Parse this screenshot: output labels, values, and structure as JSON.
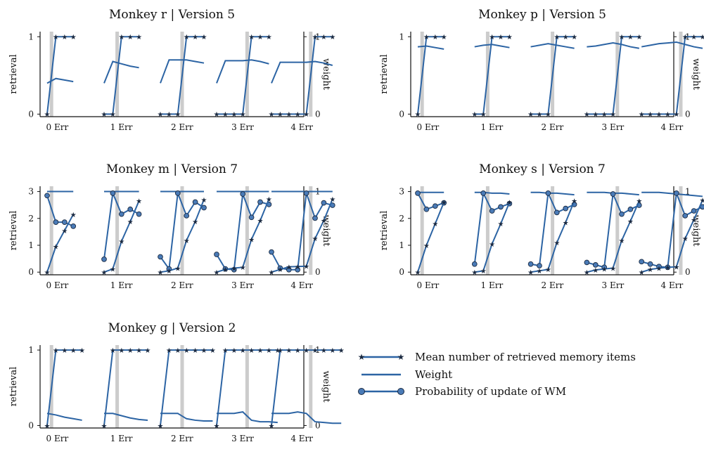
{
  "figure": {
    "legend": {
      "items": [
        {
          "label": "Mean number of retrieved memory items",
          "marker": "star"
        },
        {
          "label": "Weight",
          "marker": "none"
        },
        {
          "label": "Probability of update of WM",
          "marker": "circle"
        }
      ]
    },
    "colors": {
      "line": "#2c64a4",
      "band": "#cccccc",
      "marker": "#1b2a41"
    }
  },
  "chart_data": [
    {
      "type": "line",
      "title": "Monkey r | Version 5",
      "ylabel": "retrieval",
      "y2label": "weight",
      "ylim": [
        0,
        1
      ],
      "yticks": [
        "0",
        "1"
      ],
      "y2ticks": [
        "0",
        "1"
      ],
      "groups": [
        "0 Err",
        "1 Err",
        "2 Err",
        "3 Err",
        "4 Err"
      ],
      "retrieval": [
        [
          0,
          1,
          1,
          1
        ],
        [
          0,
          0,
          1,
          1,
          1
        ],
        [
          0,
          0,
          0,
          1,
          1,
          1
        ],
        [
          0,
          0,
          0,
          0,
          1,
          1,
          1
        ],
        [
          0,
          0,
          0,
          0,
          0,
          1,
          1,
          1
        ]
      ],
      "weight": [
        [
          0.4,
          0.46,
          0.44,
          0.42
        ],
        [
          0.4,
          0.68,
          0.65,
          0.62,
          0.6
        ],
        [
          0.4,
          0.7,
          0.7,
          0.7,
          0.68,
          0.66
        ],
        [
          0.4,
          0.69,
          0.69,
          0.69,
          0.7,
          0.68,
          0.65
        ],
        [
          0.4,
          0.67,
          0.67,
          0.67,
          0.67,
          0.68,
          0.66,
          0.63
        ]
      ]
    },
    {
      "type": "line",
      "title": "Monkey p | Version 5",
      "ylabel": "retrieval",
      "y2label": "weight",
      "ylim": [
        0,
        1
      ],
      "yticks": [
        "0",
        "1"
      ],
      "y2ticks": [
        "0",
        "1"
      ],
      "groups": [
        "0 Err",
        "1 Err",
        "2 Err",
        "3 Err",
        "4 Err"
      ],
      "retrieval": [
        [
          0,
          1,
          1,
          1
        ],
        [
          0,
          0,
          1,
          1,
          1
        ],
        [
          0,
          0,
          0,
          1,
          1,
          1
        ],
        [
          0,
          0,
          0,
          0,
          1,
          1,
          1
        ],
        [
          0,
          0,
          0,
          0,
          0,
          1,
          1,
          1
        ]
      ],
      "weight": [
        [
          0.87,
          0.88,
          0.86,
          0.84
        ],
        [
          0.87,
          0.89,
          0.9,
          0.88,
          0.86
        ],
        [
          0.87,
          0.89,
          0.91,
          0.89,
          0.87,
          0.85
        ],
        [
          0.87,
          0.88,
          0.9,
          0.92,
          0.9,
          0.87,
          0.85
        ],
        [
          0.87,
          0.89,
          0.91,
          0.92,
          0.93,
          0.9,
          0.87,
          0.85
        ]
      ]
    },
    {
      "type": "line",
      "title": "Monkey m | Version 7",
      "ylabel": "retrieval",
      "y2label": "weight",
      "ylim": [
        0,
        3
      ],
      "yticks": [
        "0",
        "1",
        "2",
        "3"
      ],
      "y2ticks": [
        "0",
        "1"
      ],
      "groups": [
        "0 Err",
        "1 Err",
        "2 Err",
        "3 Err",
        "4 Err"
      ],
      "retrieval": [
        [
          0,
          0.95,
          1.55,
          2.15
        ],
        [
          0,
          0.12,
          1.15,
          1.88,
          2.65
        ],
        [
          0,
          0.05,
          0.15,
          1.18,
          1.88,
          2.7
        ],
        [
          0,
          0.1,
          0.15,
          0.18,
          1.22,
          1.92,
          2.72
        ],
        [
          0,
          0.1,
          0.2,
          0.21,
          0.22,
          1.25,
          1.92,
          2.72
        ]
      ],
      "weight": [
        [
          1.0,
          1.0,
          1.0,
          1.0
        ],
        [
          1.0,
          1.0,
          1.0,
          1.0,
          1.0
        ],
        [
          1.0,
          1.0,
          1.0,
          1.0,
          1.0,
          1.0
        ],
        [
          1.0,
          1.0,
          1.0,
          1.0,
          1.0,
          1.0,
          1.0
        ],
        [
          1.0,
          1.0,
          1.0,
          1.0,
          1.0,
          1.0,
          1.0,
          1.0
        ]
      ],
      "update": [
        [
          0.95,
          0.62,
          0.62,
          0.57
        ],
        [
          0.16,
          0.98,
          0.72,
          0.78,
          0.72
        ],
        [
          0.19,
          0.04,
          0.98,
          0.7,
          0.87,
          0.8
        ],
        [
          0.22,
          0.04,
          0.03,
          0.97,
          0.68,
          0.87,
          0.84
        ],
        [
          0.25,
          0.05,
          0.03,
          0.03,
          0.98,
          0.67,
          0.86,
          0.83
        ]
      ]
    },
    {
      "type": "line",
      "title": "Monkey s | Version 7",
      "ylabel": "retrieval",
      "y2label": "weight",
      "ylim": [
        0,
        3
      ],
      "yticks": [
        "0",
        "1",
        "2",
        "3"
      ],
      "y2ticks": [
        "0",
        "1"
      ],
      "groups": [
        "0 Err",
        "1 Err",
        "2 Err",
        "3 Err",
        "4 Err"
      ],
      "retrieval": [
        [
          0,
          1.0,
          1.8,
          2.6
        ],
        [
          0,
          0.05,
          1.05,
          1.8,
          2.6
        ],
        [
          0,
          0.05,
          0.1,
          1.1,
          1.85,
          2.65
        ],
        [
          0,
          0.08,
          0.12,
          0.15,
          1.18,
          1.9,
          2.65
        ],
        [
          0,
          0.1,
          0.15,
          0.18,
          0.2,
          1.25,
          1.95,
          2.68
        ]
      ],
      "weight": [
        [
          0.99,
          0.99,
          0.99,
          0.99
        ],
        [
          0.99,
          0.99,
          0.98,
          0.98,
          0.97
        ],
        [
          0.99,
          0.99,
          0.98,
          0.98,
          0.97,
          0.96
        ],
        [
          0.99,
          0.99,
          0.99,
          0.98,
          0.98,
          0.97,
          0.96
        ],
        [
          0.99,
          0.99,
          0.99,
          0.98,
          0.97,
          0.96,
          0.95,
          0.94
        ]
      ],
      "update": [
        [
          0.98,
          0.78,
          0.82,
          0.86
        ],
        [
          0.1,
          0.98,
          0.76,
          0.81,
          0.85
        ],
        [
          0.1,
          0.08,
          0.98,
          0.74,
          0.79,
          0.84
        ],
        [
          0.12,
          0.09,
          0.06,
          0.97,
          0.72,
          0.78,
          0.83
        ],
        [
          0.13,
          0.1,
          0.07,
          0.06,
          0.98,
          0.7,
          0.76,
          0.81
        ]
      ]
    },
    {
      "type": "line",
      "title": "Monkey g | Version 2",
      "ylabel": "retrieval",
      "y2label": "weight",
      "ylim": [
        0,
        1
      ],
      "yticks": [
        "0",
        "1"
      ],
      "y2ticks": [
        "0",
        "1"
      ],
      "groups": [
        "0 Err",
        "1 Err",
        "2 Err",
        "3 Err",
        "4 Err"
      ],
      "retrieval": [
        [
          0,
          1,
          1,
          1,
          1
        ],
        [
          0,
          1,
          1,
          1,
          1,
          1
        ],
        [
          0,
          1,
          1,
          1,
          1,
          1,
          1
        ],
        [
          0,
          1,
          1,
          1,
          1,
          1,
          1,
          1
        ],
        [
          0,
          1,
          1,
          1,
          1,
          1,
          1,
          1,
          1
        ]
      ],
      "weight": [
        [
          0.16,
          0.14,
          0.11,
          0.09,
          0.07
        ],
        [
          0.16,
          0.16,
          0.13,
          0.1,
          0.08,
          0.07
        ],
        [
          0.16,
          0.16,
          0.16,
          0.09,
          0.07,
          0.06,
          0.06
        ],
        [
          0.16,
          0.16,
          0.16,
          0.18,
          0.07,
          0.05,
          0.05,
          0.04
        ],
        [
          0.16,
          0.16,
          0.16,
          0.18,
          0.16,
          0.05,
          0.04,
          0.03,
          0.03
        ]
      ]
    }
  ]
}
